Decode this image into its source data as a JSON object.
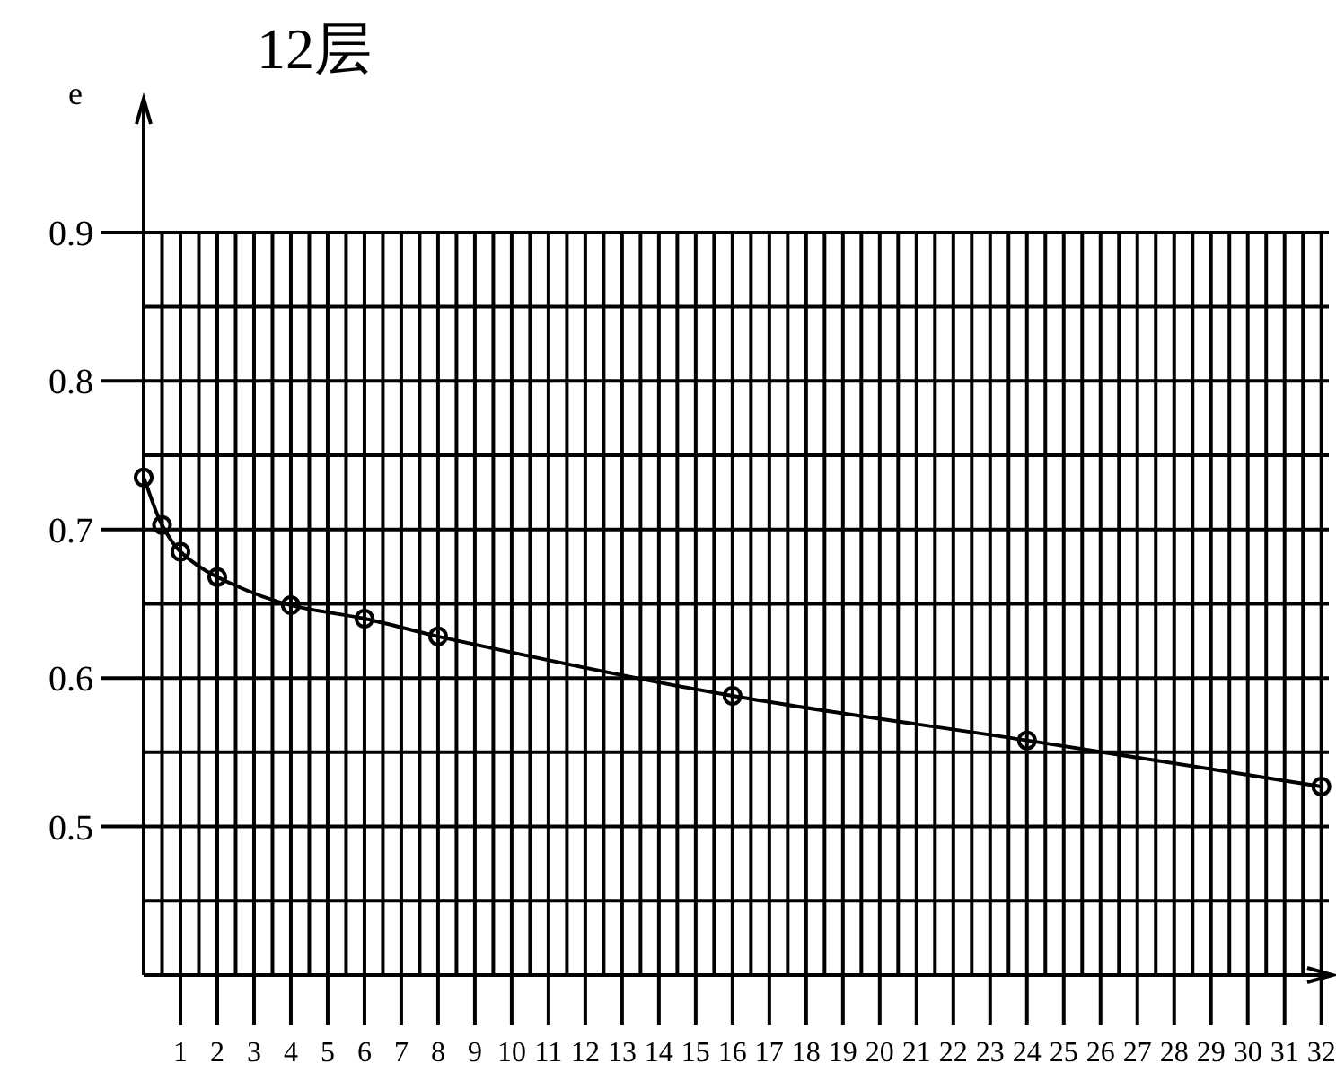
{
  "chart_data": {
    "type": "line",
    "title": "12层",
    "ylabel": "e",
    "x": [
      0,
      0.5,
      1,
      2,
      4,
      6,
      8,
      16,
      24,
      32
    ],
    "series": [
      {
        "color": "#000000",
        "values": [
          0.735,
          0.703,
          0.685,
          0.668,
          0.649,
          0.64,
          0.628,
          0.588,
          0.558,
          0.527
        ]
      }
    ],
    "marker": "circle",
    "line_style": "solid",
    "grid": true,
    "xlim": [
      0,
      32.3
    ],
    "ylim": [
      0.4,
      0.99
    ],
    "xticks": [
      {
        "value": 0.5,
        "label": null
      },
      1,
      {
        "value": 1.5,
        "label": null
      },
      2,
      {
        "value": 2.5,
        "label": null
      },
      3,
      {
        "value": 3.5,
        "label": null
      },
      4,
      {
        "value": 4.5,
        "label": null
      },
      5,
      {
        "value": 5.5,
        "label": null
      },
      6,
      {
        "value": 6.5,
        "label": null
      },
      7,
      {
        "value": 7.5,
        "label": null
      },
      8,
      {
        "value": 8.5,
        "label": null
      },
      9,
      {
        "value": 9.5,
        "label": null
      },
      10,
      {
        "value": 10.5,
        "label": null
      },
      11,
      {
        "value": 11.5,
        "label": null
      },
      12,
      {
        "value": 12.5,
        "label": null
      },
      13,
      {
        "value": 13.5,
        "label": null
      },
      14,
      {
        "value": 14.5,
        "label": null
      },
      15,
      {
        "value": 15.5,
        "label": null
      },
      16,
      {
        "value": 16.5,
        "label": null
      },
      17,
      {
        "value": 17.5,
        "label": null
      },
      18,
      {
        "value": 18.5,
        "label": null
      },
      19,
      {
        "value": 19.5,
        "label": null
      },
      20,
      {
        "value": 20.5,
        "label": null
      },
      21,
      {
        "value": 21.5,
        "label": null
      },
      22,
      {
        "value": 22.5,
        "label": null
      },
      23,
      {
        "value": 23.5,
        "label": null
      },
      24,
      {
        "value": 24.5,
        "label": null
      },
      25,
      {
        "value": 25.5,
        "label": null
      },
      26,
      {
        "value": 26.5,
        "label": null
      },
      27,
      {
        "value": 27.5,
        "label": null
      },
      28,
      {
        "value": 28.5,
        "label": null
      },
      29,
      {
        "value": 29.5,
        "label": null
      },
      30,
      {
        "value": 30.5,
        "label": null
      },
      31,
      {
        "value": 31.5,
        "label": null
      },
      32
    ],
    "yticks": [
      {
        "value": 0.45,
        "label": null
      },
      0.5,
      {
        "value": 0.55,
        "label": null
      },
      0.6,
      {
        "value": 0.65,
        "label": null
      },
      0.7,
      {
        "value": 0.75,
        "label": null
      },
      0.8,
      {
        "value": 0.85,
        "label": null
      },
      0.9
    ]
  }
}
